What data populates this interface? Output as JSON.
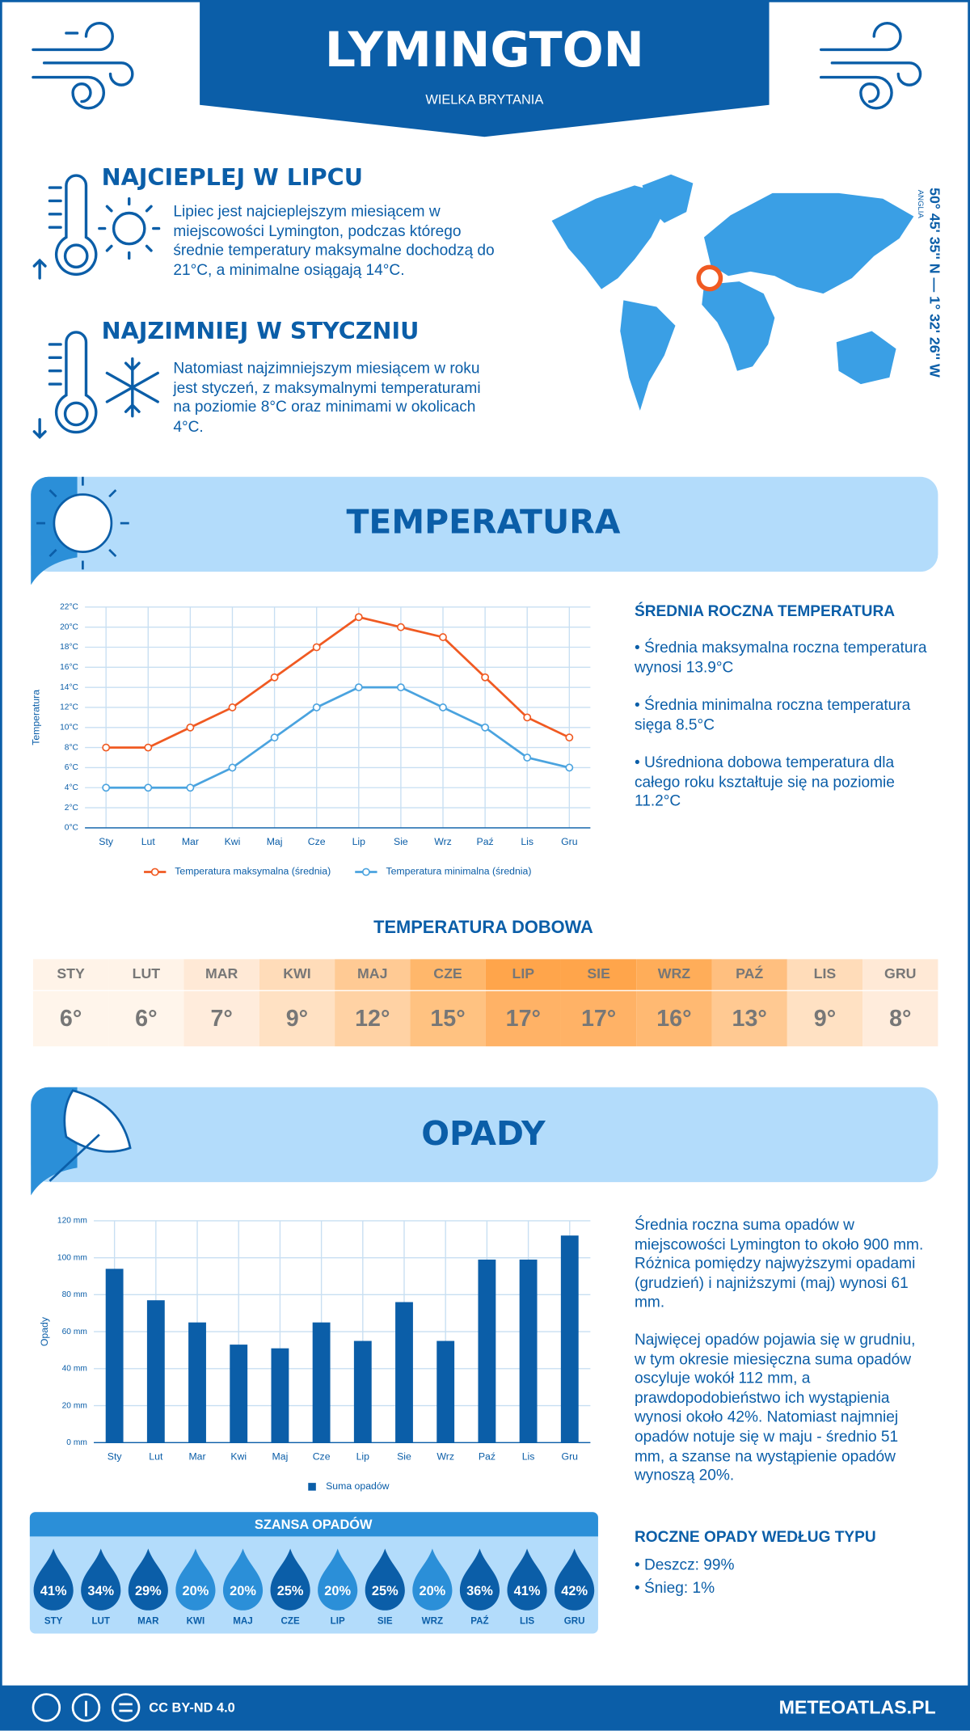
{
  "header": {
    "title": "LYMINGTON",
    "subtitle": "WIELKA BRYTANIA"
  },
  "highlights": [
    {
      "title": "NAJCIEPLEJ W LIPCU",
      "text": "Lipiec jest najcieplejszym miesiącem w miejscowości Lymington, podczas którego średnie temperatury maksymalne dochodzą do 21°C, a minimalne osiągają 14°C."
    },
    {
      "title": "NAJZIMNIEJ W STYCZNIU",
      "text": "Natomiast najzimniejszym miesiącem w roku jest styczeń, z maksymalnymi temperaturami na poziomie 8°C oraz minimami w okolicach 4°C."
    }
  ],
  "location": {
    "coordinates": "50° 45' 35'' N — 1° 32' 26'' W",
    "region": "ANGLIA"
  },
  "temperature": {
    "title": "TEMPERATURA",
    "summary": {
      "title": "ŚREDNIA ROCZNA TEMPERATURA",
      "items": [
        "• Średnia maksymalna roczna temperatura wynosi 13.9°C",
        "• Średnia minimalna roczna temperatura sięga 8.5°C",
        "• Uśredniona dobowa temperatura dla całego roku kształtuje się na poziomie 11.2°C"
      ]
    },
    "daily": {
      "title": "TEMPERATURA DOBOWA",
      "months": [
        "STY",
        "LUT",
        "MAR",
        "KWI",
        "MAJ",
        "CZE",
        "LIP",
        "SIE",
        "WRZ",
        "PAŹ",
        "LIS",
        "GRU"
      ],
      "values": [
        6,
        6,
        7,
        9,
        12,
        15,
        17,
        17,
        16,
        13,
        9,
        8
      ],
      "value_labels": [
        "6°",
        "6°",
        "7°",
        "9°",
        "12°",
        "15°",
        "17°",
        "17°",
        "16°",
        "13°",
        "9°",
        "8°"
      ],
      "colors": [
        "#fff3e8",
        "#fff3e8",
        "#ffe9d6",
        "#ffdcb9",
        "#ffca94",
        "#ffb76b",
        "#ffa54b",
        "#ffa54b",
        "#ffad59",
        "#ffbf7f",
        "#ffdcb9",
        "#ffe9d6"
      ]
    }
  },
  "precipitation": {
    "title": "OPADY",
    "paragraphs": [
      "Średnia roczna suma opadów w miejscowości Lymington to około 900 mm. Różnica pomiędzy najwyższymi opadami (grudzień) i najniższymi (maj) wynosi 61 mm.",
      "Najwięcej opadów pojawia się w grudniu, w tym okresie miesięczna suma opadów oscyluje wokół 112 mm, a prawdopodobieństwo ich wystąpienia wynosi około 42%. Natomiast najmniej opadów notuje się w maju - średnio 51 mm, a szanse na wystąpienie opadów wynoszą 20%."
    ],
    "chance": {
      "title": "SZANSA OPADÓW",
      "months": [
        "STY",
        "LUT",
        "MAR",
        "KWI",
        "MAJ",
        "CZE",
        "LIP",
        "SIE",
        "WRZ",
        "PAŹ",
        "LIS",
        "GRU"
      ],
      "values": [
        41,
        34,
        29,
        20,
        20,
        25,
        20,
        25,
        20,
        36,
        41,
        42
      ],
      "value_labels": [
        "41%",
        "34%",
        "29%",
        "20%",
        "20%",
        "25%",
        "20%",
        "25%",
        "20%",
        "36%",
        "41%",
        "42%"
      ],
      "colors": [
        "#0b5ea8",
        "#0b5ea8",
        "#0b5ea8",
        "#2b8fd8",
        "#2b8fd8",
        "#0b5ea8",
        "#2b8fd8",
        "#0b5ea8",
        "#2b8fd8",
        "#0b5ea8",
        "#0b5ea8",
        "#0b5ea8"
      ]
    },
    "by_type": {
      "title": "ROCZNE OPADY WEDŁUG TYPU",
      "items": [
        "• Deszcz: 99%",
        "• Śnieg: 1%"
      ]
    }
  },
  "chart_data": [
    {
      "type": "line",
      "y_label": "Temperatura",
      "categories": [
        "Sty",
        "Lut",
        "Mar",
        "Kwi",
        "Maj",
        "Cze",
        "Lip",
        "Sie",
        "Wrz",
        "Paź",
        "Lis",
        "Gru"
      ],
      "series": [
        {
          "name": "Temperatura maksymalna (średnia)",
          "color": "#f05a22",
          "values": [
            8,
            8,
            10,
            12,
            15,
            18,
            21,
            20,
            19,
            15,
            11,
            9
          ]
        },
        {
          "name": "Temperatura minimalna (średnia)",
          "color": "#4aa3df",
          "values": [
            4,
            4,
            4,
            6,
            9,
            12,
            14,
            14,
            12,
            10,
            7,
            6
          ]
        }
      ],
      "ylim": [
        0,
        22
      ],
      "yticks": [
        {
          "value": 0,
          "label": "0°C"
        },
        {
          "value": 2,
          "label": "2°C"
        },
        {
          "value": 4,
          "label": "4°C"
        },
        {
          "value": 6,
          "label": "6°C"
        },
        {
          "value": 8,
          "label": "8°C"
        },
        {
          "value": 10,
          "label": "10°C"
        },
        {
          "value": 12,
          "label": "12°C"
        },
        {
          "value": 14,
          "label": "14°C"
        },
        {
          "value": 16,
          "label": "16°C"
        },
        {
          "value": 18,
          "label": "18°C"
        },
        {
          "value": 20,
          "label": "20°C"
        },
        {
          "value": 22,
          "label": "22°C"
        }
      ],
      "grid": true,
      "legend": "bottom"
    },
    {
      "type": "bar",
      "y_label": "Opady",
      "categories": [
        "Sty",
        "Lut",
        "Mar",
        "Kwi",
        "Maj",
        "Cze",
        "Lip",
        "Sie",
        "Wrz",
        "Paź",
        "Lis",
        "Gru"
      ],
      "series": [
        {
          "name": "Suma opadów",
          "color": "#0b5ea8",
          "values": [
            94,
            77,
            65,
            53,
            51,
            65,
            55,
            76,
            55,
            99,
            99,
            112
          ]
        }
      ],
      "ylim": [
        0,
        120
      ],
      "yticks": [
        {
          "value": 0,
          "label": "0 mm"
        },
        {
          "value": 20,
          "label": "20 mm"
        },
        {
          "value": 40,
          "label": "40 mm"
        },
        {
          "value": 60,
          "label": "60 mm"
        },
        {
          "value": 80,
          "label": "80 mm"
        },
        {
          "value": 100,
          "label": "100 mm"
        },
        {
          "value": 120,
          "label": "120 mm"
        }
      ],
      "grid": true,
      "legend": "bottom"
    }
  ],
  "footer": {
    "license": "CC BY-ND 4.0",
    "site": "METEOATLAS.PL"
  }
}
